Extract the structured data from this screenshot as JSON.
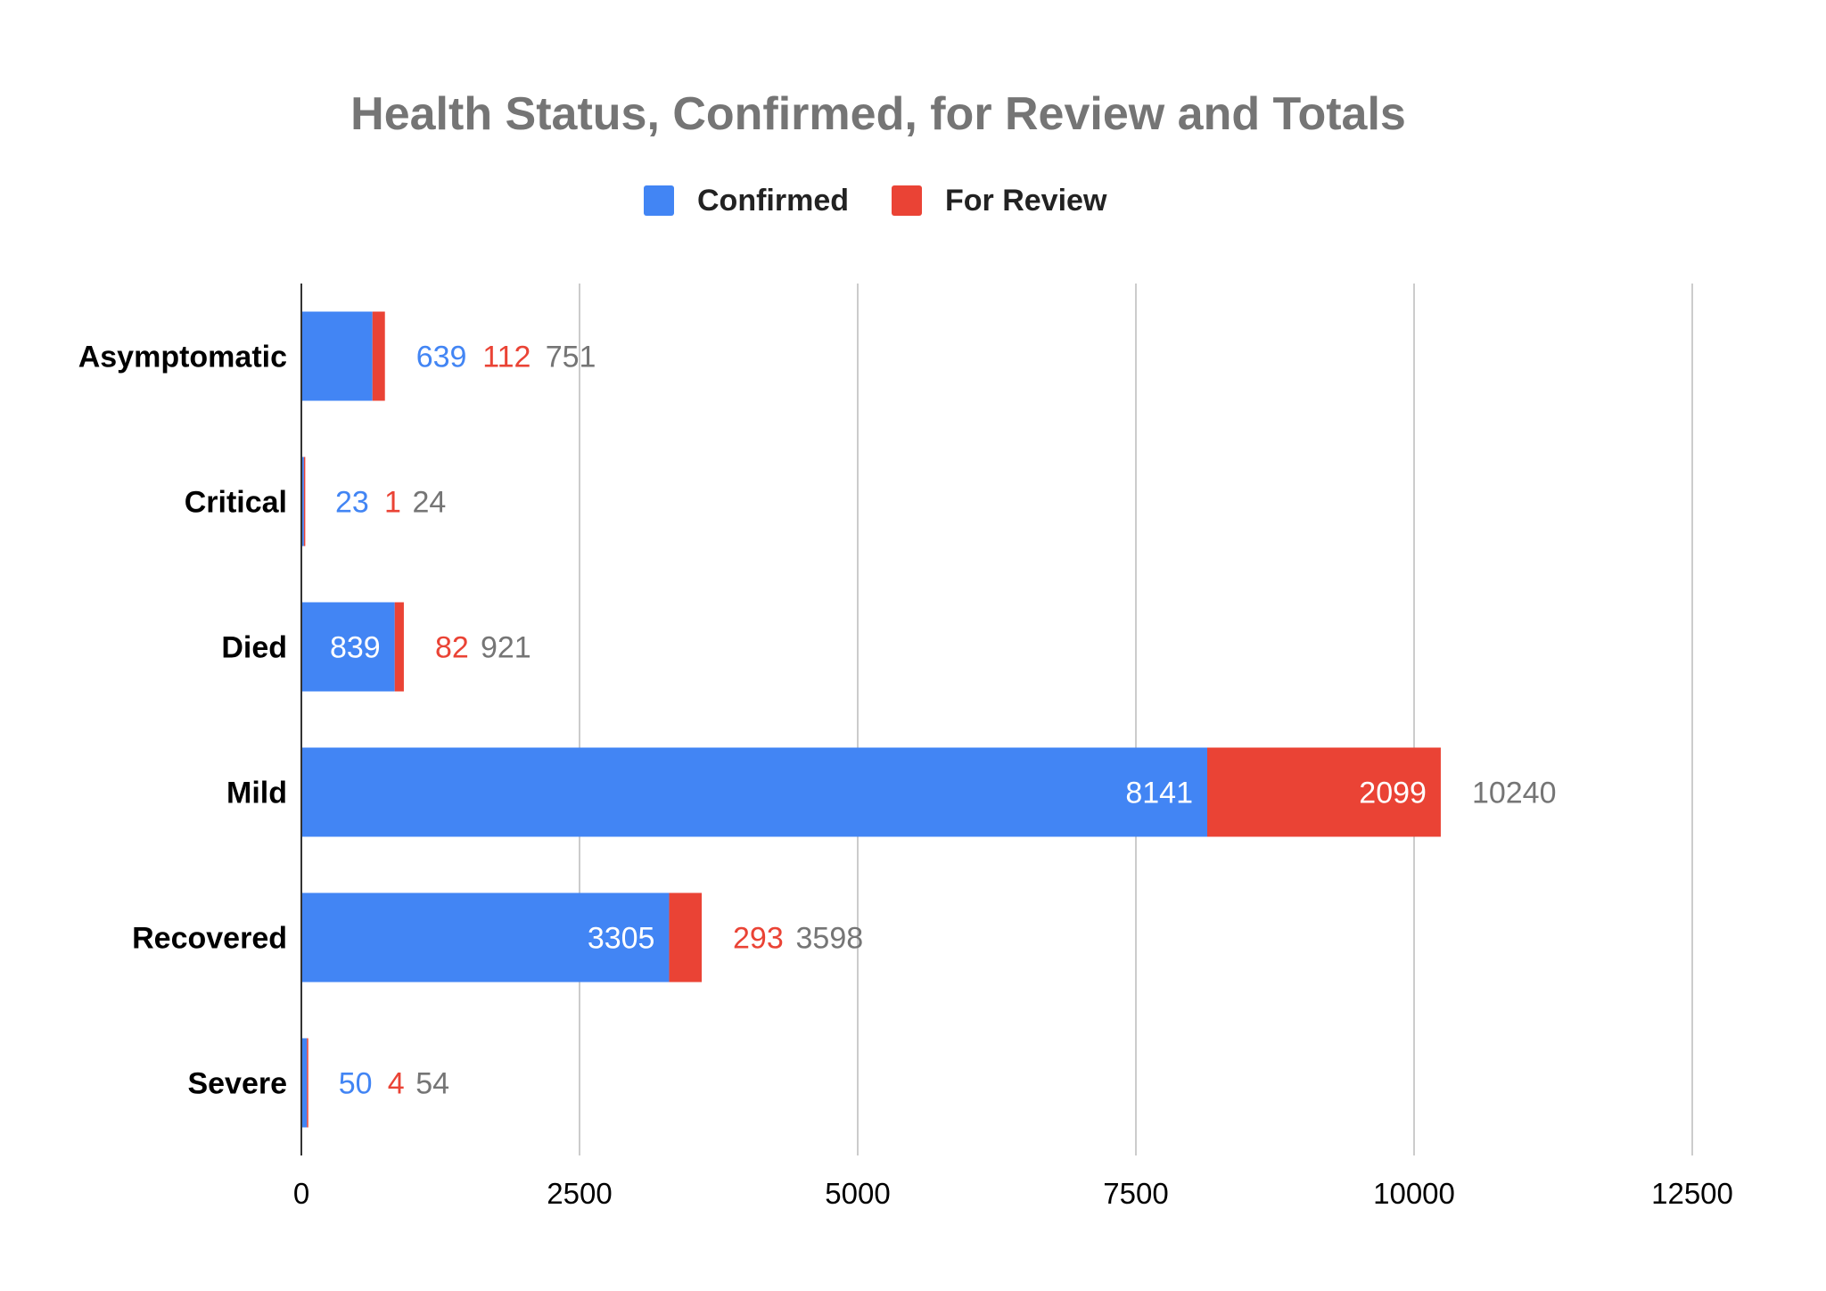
{
  "chart_data": {
    "type": "bar",
    "orientation": "horizontal",
    "stacked": true,
    "title": "Health Status, Confirmed, for Review and Totals",
    "xlabel": "",
    "ylabel": "",
    "categories": [
      "Asymptomatic",
      "Critical",
      "Died",
      "Mild",
      "Recovered",
      "Severe"
    ],
    "series": [
      {
        "name": "Confirmed",
        "color": "#4285f4",
        "values": [
          639,
          23,
          839,
          8141,
          3305,
          50
        ]
      },
      {
        "name": "For Review",
        "color": "#ea4335",
        "values": [
          112,
          1,
          82,
          2099,
          293,
          4
        ]
      }
    ],
    "totals": [
      751,
      24,
      921,
      10240,
      3598,
      54
    ],
    "total_label_color": "#757575",
    "xlim": [
      0,
      12500
    ],
    "xticks": [
      0,
      2500,
      5000,
      7500,
      10000,
      12500
    ],
    "grid": true,
    "legend_position": "top"
  }
}
